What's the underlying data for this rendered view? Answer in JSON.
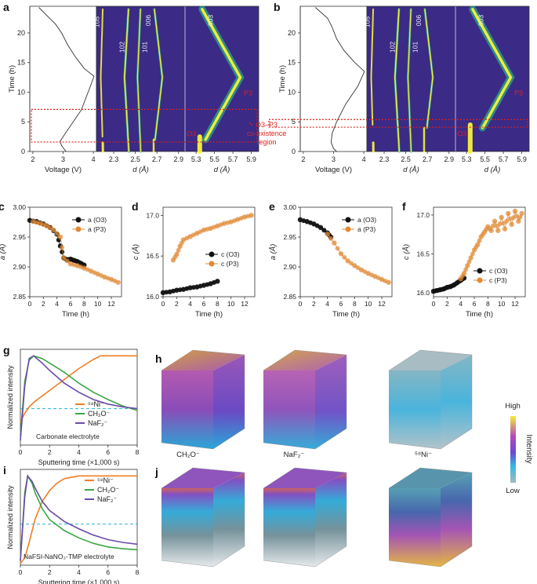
{
  "panels": {
    "a": "a",
    "b": "b",
    "c": "c",
    "d": "d",
    "e": "e",
    "f": "f",
    "g": "g",
    "h": "h",
    "i": "i",
    "j": "j"
  },
  "top": {
    "time_axis_label": "Time (h)",
    "time_ticks": [
      "0",
      "5",
      "10",
      "15",
      "20"
    ],
    "voltage_label": "Voltage (V)",
    "voltage_ticks": [
      "2",
      "3",
      "4"
    ],
    "d_label": "d (Å)",
    "d_ticks_left": [
      "2.3",
      "2.5",
      "2.7",
      "2.9"
    ],
    "d_ticks_right": [
      "5.3",
      "5.5",
      "5.7",
      "5.9"
    ],
    "peaks": [
      "105",
      "102",
      "101",
      "006",
      "003"
    ],
    "phase_p3": "P3",
    "phase_o3": "O3",
    "coexist_label": [
      "O3–P3",
      "co-existence",
      "region"
    ],
    "colors": {
      "heatmap_bg": "#3b2a86",
      "heatmap_peak": "#f8f23a",
      "heatmap_mid": "#29b38a",
      "highlight": "#e0201b"
    }
  },
  "lattice": {
    "time_label": "Time (h)",
    "a_label": "a (Å)",
    "c_label": "c (Å)",
    "a_ticks": [
      "2.85",
      "2.90",
      "2.95",
      "3.00"
    ],
    "c_ticks": [
      "16.0",
      "16.5",
      "17.0"
    ],
    "time_ticks": [
      "0",
      "2",
      "4",
      "6",
      "8",
      "10",
      "12"
    ],
    "legend_a": [
      "a (O3)",
      "a (P3)"
    ],
    "legend_c": [
      "c (O3)",
      "c (P3)"
    ],
    "colors": {
      "o3": "#111111",
      "p3": "#e08a36"
    }
  },
  "sputter": {
    "ylabel": "Normalized intensity",
    "xlabel": "Sputtering time (×1,000 s)",
    "x_ticks": [
      "0",
      "2",
      "4",
      "6",
      "8"
    ],
    "legend": [
      "⁵⁸Ni⁻",
      "CH₂O⁻",
      "NaF₂⁻"
    ],
    "g_caption": "Carbonate electrolyte",
    "i_caption": "NaFSI-NaNO₃-TMP electrolyte",
    "colors": {
      "ni": "#f07f24",
      "ch2o": "#3aa845",
      "naf2": "#6a4ca8",
      "ref": "#2ab0d8"
    }
  },
  "cubes": {
    "labels": [
      "CH₂O⁻",
      "NaF₂⁻",
      "⁵⁸Ni⁻"
    ],
    "colorbar_high": "High",
    "colorbar_low": "Low",
    "colorbar_title": "Intensity"
  },
  "chart_data": [
    {
      "type": "line",
      "panel": "c",
      "xlabel": "Time (h)",
      "ylabel": "a (Å)",
      "xlim": [
        0,
        13.5
      ],
      "ylim": [
        2.85,
        3.0
      ],
      "series": [
        {
          "name": "a (O3)",
          "x": [
            0,
            1,
            2,
            3,
            4,
            4.5,
            5,
            5.5,
            6,
            6.5,
            7,
            7.5,
            8
          ],
          "values": [
            2.978,
            2.976,
            2.972,
            2.966,
            2.955,
            2.935,
            2.915,
            2.912,
            2.913,
            2.911,
            2.909,
            2.906,
            2.903
          ]
        },
        {
          "name": "a (P3)",
          "x": [
            0.5,
            1.5,
            2.5,
            3.5,
            4.5,
            5,
            6,
            7,
            8,
            9,
            10,
            11,
            12,
            13
          ],
          "values": [
            2.976,
            2.973,
            2.969,
            2.962,
            2.95,
            2.915,
            2.905,
            2.902,
            2.898,
            2.893,
            2.888,
            2.883,
            2.879,
            2.874
          ]
        }
      ]
    },
    {
      "type": "line",
      "panel": "d",
      "xlabel": "Time (h)",
      "ylabel": "c (Å)",
      "xlim": [
        0,
        13.5
      ],
      "ylim": [
        16.0,
        17.1
      ],
      "series": [
        {
          "name": "c (O3)",
          "x": [
            0,
            1,
            2,
            3,
            4,
            5,
            6,
            7,
            8
          ],
          "values": [
            16.05,
            16.06,
            16.08,
            16.09,
            16.11,
            16.12,
            16.14,
            16.16,
            16.19
          ]
        },
        {
          "name": "c (P3)",
          "x": [
            1.5,
            2,
            2.5,
            3,
            4,
            5,
            6,
            7,
            8,
            9,
            10,
            11,
            12,
            13
          ],
          "values": [
            16.45,
            16.52,
            16.62,
            16.7,
            16.74,
            16.78,
            16.82,
            16.84,
            16.87,
            16.9,
            16.92,
            16.95,
            16.98,
            17.0
          ]
        }
      ]
    },
    {
      "type": "line",
      "panel": "e",
      "xlabel": "Time (h)",
      "ylabel": "a (Å)",
      "xlim": [
        0,
        13.5
      ],
      "ylim": [
        2.85,
        3.0
      ],
      "series": [
        {
          "name": "a (O3)",
          "x": [
            0,
            1,
            2,
            3,
            4,
            4.5
          ],
          "values": [
            2.979,
            2.976,
            2.972,
            2.966,
            2.957,
            2.95
          ]
        },
        {
          "name": "a (P3)",
          "x": [
            4,
            5,
            6,
            7,
            8,
            9,
            10,
            11,
            12,
            13
          ],
          "values": [
            2.955,
            2.94,
            2.922,
            2.91,
            2.902,
            2.895,
            2.889,
            2.884,
            2.879,
            2.874
          ]
        }
      ]
    },
    {
      "type": "scatter",
      "panel": "f",
      "xlabel": "Time (h)",
      "ylabel": "c (Å)",
      "xlim": [
        0,
        13.5
      ],
      "ylim": [
        15.95,
        17.1
      ],
      "series": [
        {
          "name": "c (O3)",
          "x": [
            0,
            0.5,
            1,
            1.5,
            2,
            2.5,
            3,
            3.5,
            4,
            4.5
          ],
          "values": [
            16.02,
            16.03,
            16.04,
            16.05,
            16.07,
            16.08,
            16.1,
            16.13,
            16.16,
            16.19
          ]
        },
        {
          "name": "c (P3)",
          "x": [
            4,
            4.5,
            5,
            5.5,
            6,
            6.5,
            7,
            7.5,
            8,
            8.5,
            9,
            9.5,
            10,
            10.5,
            11,
            11.5,
            12,
            12.5,
            13
          ],
          "values": [
            16.18,
            16.25,
            16.35,
            16.45,
            16.55,
            16.62,
            16.72,
            16.78,
            16.85,
            16.8,
            16.92,
            16.8,
            16.97,
            16.82,
            17.02,
            16.88,
            17.05,
            16.92,
            17.02
          ]
        }
      ]
    },
    {
      "type": "line",
      "panel": "g",
      "xlabel": "Sputtering time (×1,000 s)",
      "ylabel": "Normalized intensity",
      "xlim": [
        0,
        8
      ],
      "ylim": [
        0,
        1
      ],
      "series": [
        {
          "name": "⁵⁸Ni⁻",
          "x": [
            0,
            0.3,
            0.6,
            1,
            2,
            3,
            4,
            5,
            5.5,
            6,
            7,
            8
          ],
          "values": [
            0.25,
            0.35,
            0.42,
            0.48,
            0.6,
            0.72,
            0.84,
            0.94,
            0.98,
            0.98,
            0.98,
            0.98
          ]
        },
        {
          "name": "CH₂O⁻",
          "x": [
            0,
            0.3,
            0.6,
            0.9,
            1.5,
            2,
            3,
            4,
            5,
            6,
            7,
            8
          ],
          "values": [
            0.1,
            0.7,
            0.93,
            0.98,
            0.95,
            0.9,
            0.8,
            0.68,
            0.58,
            0.5,
            0.43,
            0.38
          ]
        },
        {
          "name": "NaF₂⁻",
          "x": [
            0,
            0.3,
            0.6,
            0.9,
            1.5,
            2,
            3,
            4,
            5,
            6,
            7,
            8
          ],
          "values": [
            0.05,
            0.65,
            0.95,
            0.98,
            0.9,
            0.82,
            0.68,
            0.58,
            0.5,
            0.45,
            0.42,
            0.4
          ]
        }
      ]
    },
    {
      "type": "line",
      "panel": "i",
      "xlabel": "Sputtering time (×1,000 s)",
      "ylabel": "Normalized intensity",
      "xlim": [
        0,
        8
      ],
      "ylim": [
        0,
        1
      ],
      "series": [
        {
          "name": "⁵⁸Ni⁻",
          "x": [
            0,
            0.3,
            0.6,
            1,
            1.5,
            2,
            2.5,
            3,
            4,
            5,
            6,
            7,
            8
          ],
          "values": [
            0.02,
            0.08,
            0.25,
            0.5,
            0.7,
            0.82,
            0.9,
            0.95,
            0.98,
            0.98,
            0.98,
            0.98,
            0.98
          ]
        },
        {
          "name": "CH₂O⁻",
          "x": [
            0,
            0.3,
            0.5,
            0.8,
            1,
            1.5,
            2,
            3,
            4,
            5,
            6,
            7,
            8
          ],
          "values": [
            0.05,
            0.8,
            0.98,
            0.9,
            0.8,
            0.62,
            0.5,
            0.38,
            0.3,
            0.24,
            0.2,
            0.18,
            0.17
          ]
        },
        {
          "name": "NaF₂⁻",
          "x": [
            0,
            0.3,
            0.5,
            0.8,
            1,
            1.5,
            2,
            3,
            4,
            5,
            6,
            7,
            8
          ],
          "values": [
            0.05,
            0.75,
            0.98,
            0.92,
            0.85,
            0.7,
            0.6,
            0.48,
            0.4,
            0.33,
            0.28,
            0.25,
            0.23
          ]
        }
      ]
    }
  ]
}
